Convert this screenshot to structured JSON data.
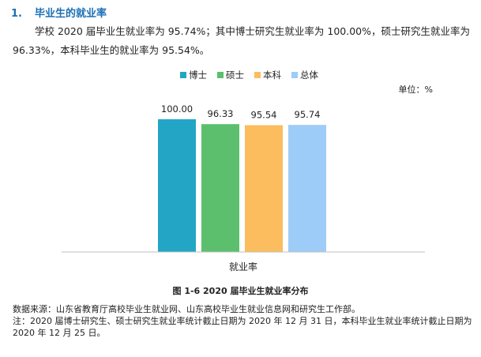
{
  "section": {
    "number": "1.",
    "title": "毕业生的就业率"
  },
  "intro_text": "学校 2020 届毕业生就业率为 95.74%；其中博士研究生就业率为 100.00%，硕士研究生就业率为 96.33%，本科毕业生的就业率为 95.54%。",
  "chart_data": {
    "type": "bar",
    "title": "",
    "categories": [
      "就业率"
    ],
    "series": [
      {
        "name": "博士",
        "values": [
          100.0
        ],
        "label": "100.00",
        "color": "#23a5c6"
      },
      {
        "name": "硕士",
        "values": [
          96.33
        ],
        "label": "96.33",
        "color": "#5cbf6e"
      },
      {
        "name": "本科",
        "values": [
          95.54
        ],
        "label": "95.54",
        "color": "#fbbd5e"
      },
      {
        "name": "总体",
        "values": [
          95.74
        ],
        "label": "95.74",
        "color": "#9dccf8"
      }
    ],
    "unit_label": "单位：%",
    "xlabel": "",
    "ylabel": "",
    "ylim": [
      0,
      100
    ],
    "legend_position": "top",
    "grid": false
  },
  "caption": "图 1-6 2020 届毕业生就业率分布",
  "source_note": "数据来源：山东省教育厅高校毕业生就业网、山东高校毕业生就业信息网和研究生工作部。",
  "footnote": "注：2020 届博士研究生、硕士研究生就业率统计截止日期为 2020 年 12 月 31 日，本科毕业生就业率统计截止日期为 2020 年 12 月 25 日。"
}
